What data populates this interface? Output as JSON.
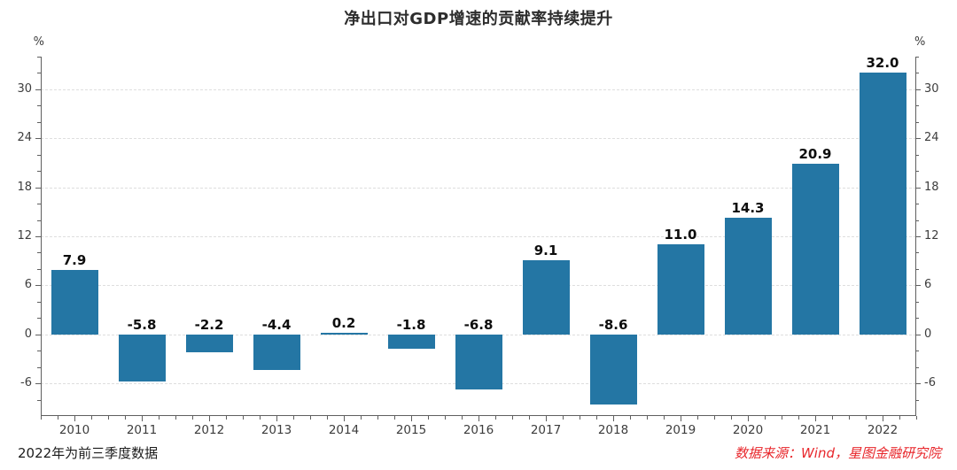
{
  "footnote": "2022年为前三季度数据",
  "source": "数据来源：Wind，星图金融研究院",
  "colors": {
    "bar": "#2476A4",
    "source_text": "#E8262B",
    "axis": "#5F5F5F",
    "grid": "#DEDEDE",
    "tick_label": "#3D3D3D",
    "title": "#2D2D2D"
  },
  "chart_data": {
    "type": "bar",
    "title": "净出口对GDP增速的贡献率持续提升",
    "y_unit": "%",
    "categories": [
      "2010",
      "2011",
      "2012",
      "2013",
      "2014",
      "2015",
      "2016",
      "2017",
      "2018",
      "2019",
      "2020",
      "2021",
      "2022"
    ],
    "values": [
      7.9,
      -5.8,
      -2.2,
      -4.4,
      0.2,
      -1.8,
      -6.8,
      9.1,
      -8.6,
      11.0,
      14.3,
      20.9,
      32.0
    ],
    "bar_labels": [
      "7.9",
      "-5.8",
      "-2.2",
      "-4.4",
      "0.2",
      "-1.8",
      "-6.8",
      "9.1",
      "-8.6",
      "11.0",
      "14.3",
      "20.9",
      "32.0"
    ],
    "xlabel": "",
    "ylabel": "%",
    "ylim": [
      -10,
      34
    ],
    "y_major_ticks": [
      -6,
      0,
      6,
      12,
      18,
      24,
      30
    ],
    "y_minor_tick_step": 2,
    "x_minor_ticks_per_slot": 4,
    "grid": true,
    "legend": "none",
    "dual_axis": true
  }
}
